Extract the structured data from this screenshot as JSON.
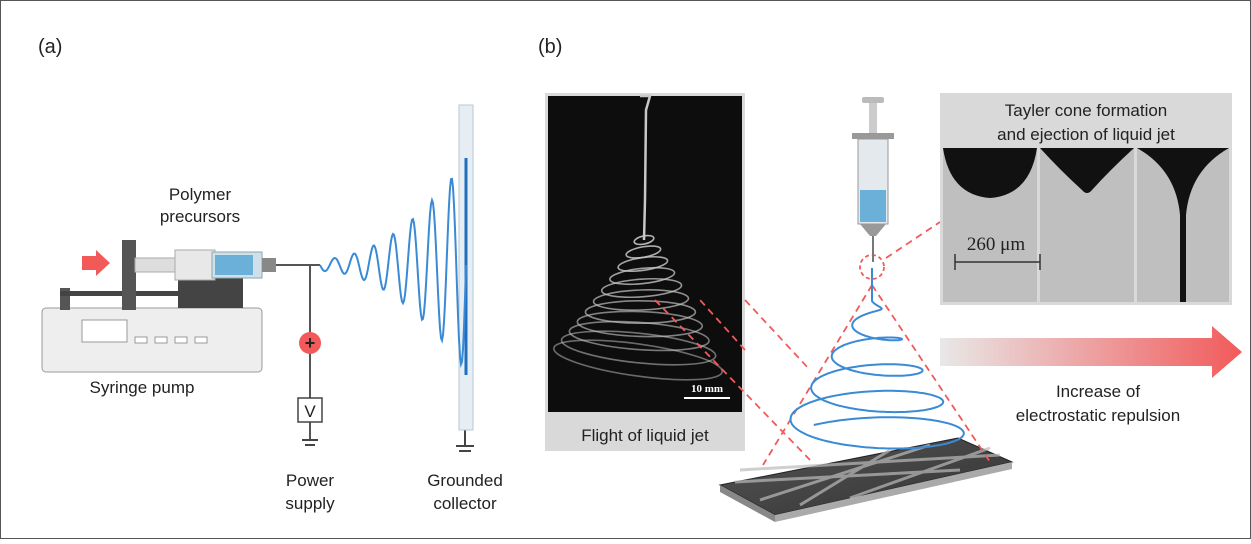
{
  "panel_a": {
    "label": "(a)",
    "polymer_label": [
      "Polymer",
      "precursors"
    ],
    "pump_label": "Syringe pump",
    "plus": "+",
    "voltmeter": "V",
    "power_label": [
      "Power",
      "supply"
    ],
    "collector_label": [
      "Grounded",
      "collector"
    ]
  },
  "panel_b": {
    "label": "(b)",
    "photo_scale": "10 mm",
    "photo_caption": "Flight of liquid jet",
    "cone_title": [
      "Tayler cone formation",
      "and ejection of liquid jet"
    ],
    "cone_scale": "260 μm",
    "arrow_label": [
      "Increase of",
      "electrostatic repulsion"
    ]
  }
}
